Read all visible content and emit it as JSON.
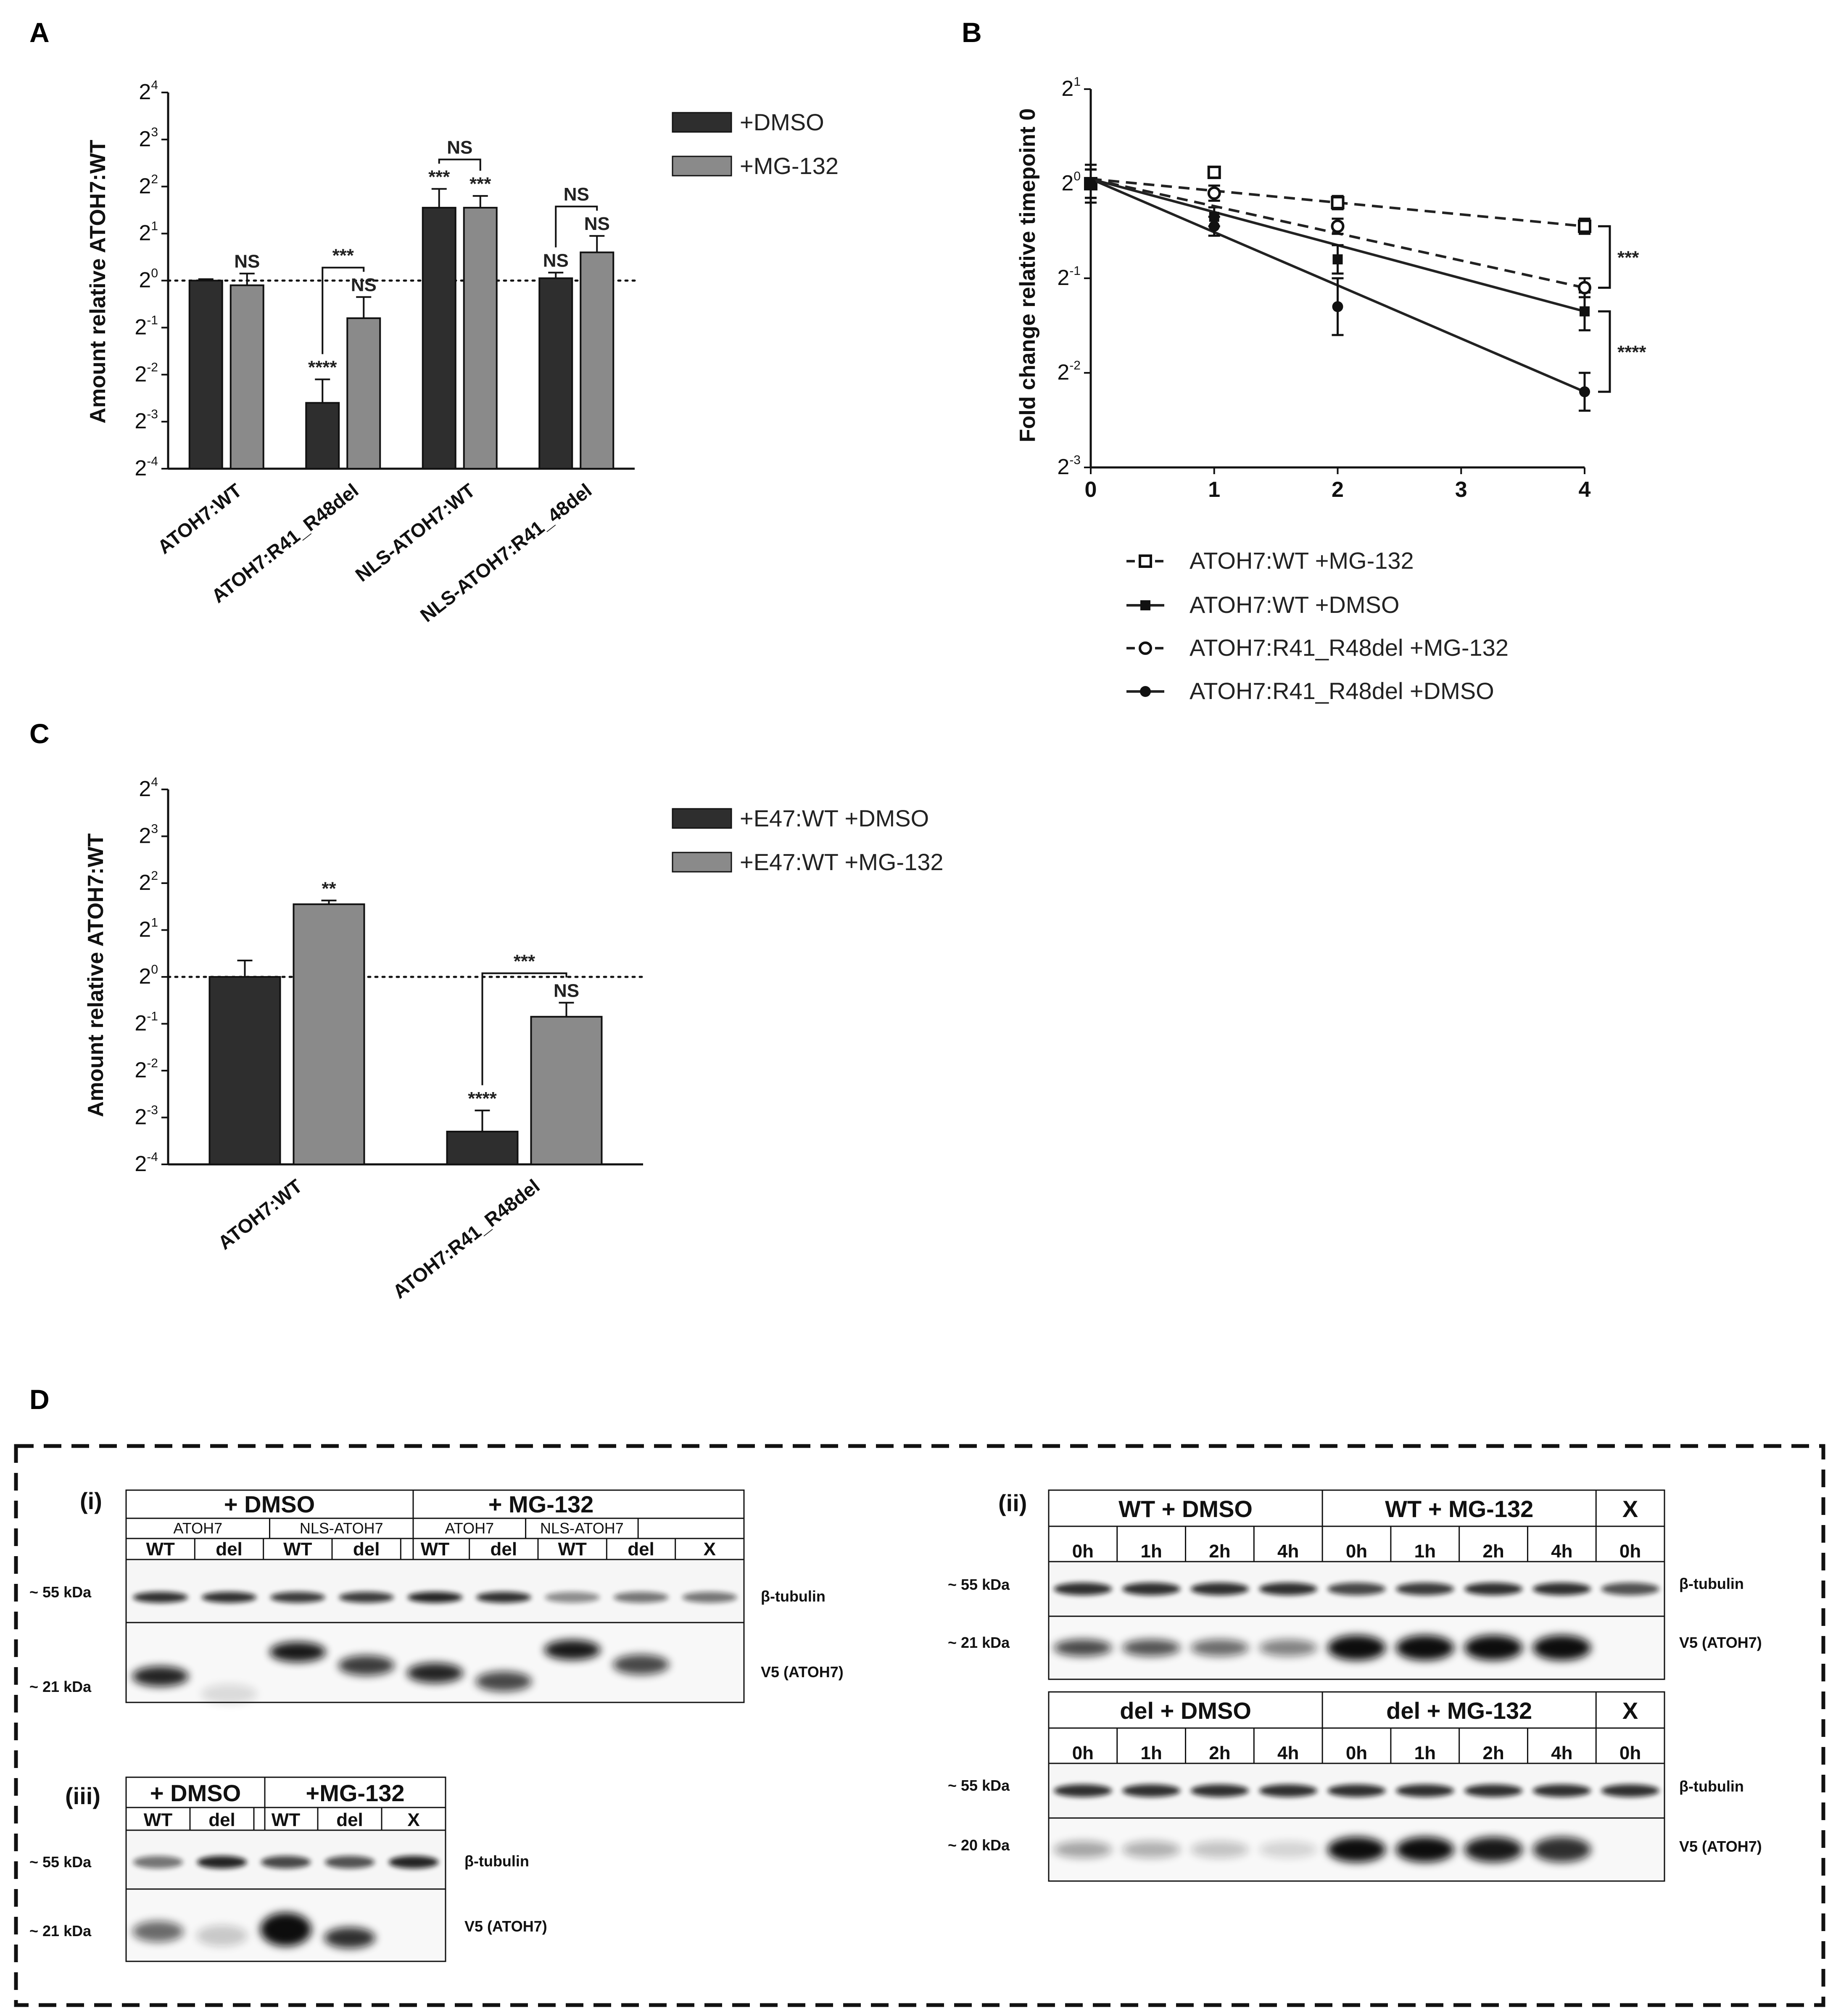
{
  "panels": {
    "A": "A",
    "B": "B",
    "C": "C",
    "D": "D"
  },
  "chart_data": [
    {
      "id": "A",
      "type": "bar",
      "ylabel": "Amount relative ATOH7:WT",
      "yscale": "log2",
      "ylim_exp": [
        -4,
        4
      ],
      "yticks_exp": [
        "-4",
        "-3",
        "-2",
        "-1",
        "0",
        "1",
        "2",
        "3",
        "4"
      ],
      "reference_line_exp": 0,
      "categories": [
        "ATOH7:WT",
        "ATOH7:R41_R48del",
        "NLS-ATOH7:WT",
        "NLS-ATOH7:R41_48del"
      ],
      "series": [
        {
          "name": "+DMSO",
          "color": "#2e2e2e",
          "values_exp": [
            0.0,
            -2.6,
            1.55,
            0.05
          ],
          "err_exp": [
            0.03,
            0.5,
            0.4,
            0.12
          ],
          "sig": [
            "",
            "****",
            "***",
            "NS"
          ]
        },
        {
          "name": "+MG-132",
          "color": "#8a8a8a",
          "values_exp": [
            -0.1,
            -0.8,
            1.55,
            0.6
          ],
          "err_exp": [
            0.25,
            0.45,
            0.25,
            0.35
          ],
          "sig": [
            "NS",
            "NS",
            "***",
            "NS"
          ]
        }
      ],
      "pair_sig": [
        {
          "cat": 1,
          "label": "***"
        },
        {
          "cat": 2,
          "label": "NS"
        },
        {
          "cat": 3,
          "label": "NS"
        }
      ],
      "legend": [
        "+DMSO",
        "+MG-132"
      ]
    },
    {
      "id": "B",
      "type": "line",
      "ylabel": "Fold change relative timepoint 0",
      "yscale": "log2",
      "ylim_exp": [
        -3,
        1
      ],
      "yticks_exp": [
        "-3",
        "-2",
        "-1",
        "0",
        "1"
      ],
      "x": [
        0,
        1,
        2,
        4
      ],
      "xticks": [
        "0",
        "1",
        "2",
        "3",
        "4"
      ],
      "xlim": [
        0,
        4
      ],
      "series": [
        {
          "name": "ATOH7:WT +MG-132",
          "marker": "open-square",
          "dash": true,
          "y_exp": [
            0.0,
            0.12,
            -0.2,
            -0.45
          ],
          "err_exp": [
            0.15,
            0.05,
            0.07,
            0.08
          ],
          "fit_exp": [
            0.05,
            -0.45
          ]
        },
        {
          "name": "ATOH7:WT +DMSO",
          "marker": "filled-square",
          "dash": false,
          "y_exp": [
            0.0,
            -0.35,
            -0.8,
            -1.35
          ],
          "err_exp": [
            0.15,
            0.1,
            0.15,
            0.2
          ],
          "fit_exp": [
            0.05,
            -1.35
          ]
        },
        {
          "name": "ATOH7:R41_R48del +MG-132",
          "marker": "open-circle",
          "dash": true,
          "y_exp": [
            0.0,
            -0.1,
            -0.45,
            -1.1
          ],
          "err_exp": [
            0.15,
            0.08,
            0.08,
            0.1
          ],
          "fit_exp": [
            0.05,
            -1.1
          ]
        },
        {
          "name": "ATOH7:R41_R48del +DMSO",
          "marker": "filled-circle",
          "dash": false,
          "y_exp": [
            0.0,
            -0.45,
            -1.3,
            -2.2
          ],
          "err_exp": [
            0.2,
            0.1,
            0.3,
            0.2
          ],
          "fit_exp": [
            0.05,
            -2.2
          ]
        }
      ],
      "brackets": [
        {
          "from_series": 0,
          "to_series": 2,
          "label": "***"
        },
        {
          "from_series": 1,
          "to_series": 3,
          "label": "****"
        }
      ]
    },
    {
      "id": "C",
      "type": "bar",
      "ylabel": "Amount relative ATOH7:WT",
      "yscale": "log2",
      "ylim_exp": [
        -4,
        4
      ],
      "yticks_exp": [
        "-4",
        "-3",
        "-2",
        "-1",
        "0",
        "1",
        "2",
        "3",
        "4"
      ],
      "reference_line_exp": 0,
      "categories": [
        "ATOH7:WT",
        "ATOH7:R41_R48del"
      ],
      "series": [
        {
          "name": "+E47:WT +DMSO",
          "color": "#2e2e2e",
          "values_exp": [
            0.0,
            -3.3
          ],
          "err_exp": [
            0.35,
            0.45
          ],
          "sig": [
            "",
            "****"
          ]
        },
        {
          "name": "+E47:WT +MG-132",
          "color": "#8a8a8a",
          "values_exp": [
            1.55,
            -0.85
          ],
          "err_exp": [
            0.08,
            0.3
          ],
          "sig": [
            "**",
            "NS"
          ]
        }
      ],
      "pair_sig": [
        {
          "cat": 1,
          "label": "***"
        }
      ],
      "legend": [
        "+E47:WT +DMSO",
        "+E47:WT +MG-132"
      ]
    }
  ],
  "blots": {
    "i": {
      "label": "(i)",
      "groups": [
        "+ DMSO",
        "+ MG-132"
      ],
      "subgroups": [
        "ATOH7",
        "NLS-ATOH7",
        "ATOH7",
        "NLS-ATOH7"
      ],
      "lanes": [
        "WT",
        "del",
        "WT",
        "del",
        "WT",
        "del",
        "WT",
        "del",
        "X"
      ],
      "sizes": [
        "~ 55 kDa",
        "~ 21 kDa"
      ],
      "antibodies": [
        "β-tubulin",
        "V5 (ATOH7)"
      ]
    },
    "ii": {
      "label": "(ii)",
      "groups_top": [
        "WT + DMSO",
        "WT + MG-132",
        "X"
      ],
      "groups_bottom": [
        "del + DMSO",
        "del + MG-132",
        "X"
      ],
      "lanes": [
        "0h",
        "1h",
        "2h",
        "4h",
        "0h",
        "1h",
        "2h",
        "4h",
        "0h"
      ],
      "sizes_top": [
        "~ 55 kDa",
        "~ 21 kDa"
      ],
      "sizes_bottom": [
        "~ 55 kDa",
        "~ 20 kDa"
      ],
      "antibodies": [
        "β-tubulin",
        "V5 (ATOH7)"
      ]
    },
    "iii": {
      "label": "(iii)",
      "groups": [
        "+ DMSO",
        "+MG-132"
      ],
      "lanes": [
        "WT",
        "del",
        "WT",
        "del",
        "X"
      ],
      "sizes": [
        "~ 55 kDa",
        "~ 21 kDa"
      ],
      "antibodies": [
        "β-tubulin",
        "V5 (ATOH7)"
      ]
    }
  }
}
